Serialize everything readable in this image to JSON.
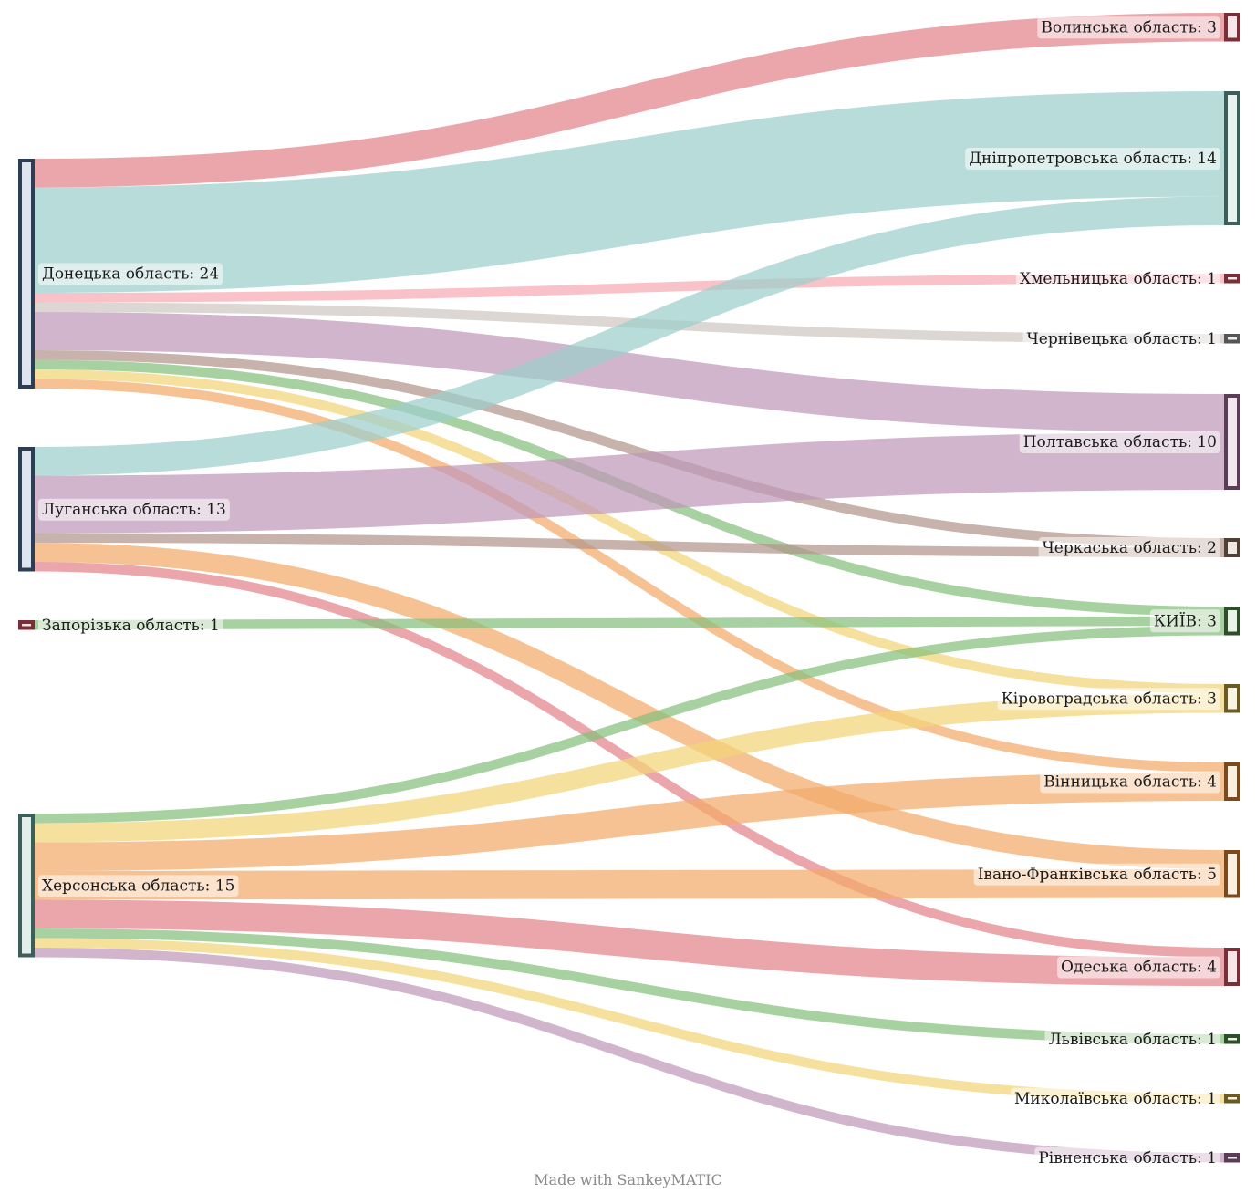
{
  "chart_data": {
    "type": "sankey",
    "unit_scale": 10.5,
    "sources": [
      {
        "id": "donetsk",
        "label": "Донецька область: 24",
        "value": 24,
        "color": "#2c3e56",
        "fill": "#dfe5ee"
      },
      {
        "id": "luhansk",
        "label": "Луганська область: 13",
        "value": 13,
        "color": "#2c3e56",
        "fill": "#dfe5ee"
      },
      {
        "id": "zaporizhzhia",
        "label": "Запорізька область: 1",
        "value": 1,
        "color": "#7a2e38",
        "fill": "#f3e1e3"
      },
      {
        "id": "kherson",
        "label": "Херсонська область: 15",
        "value": 15,
        "color": "#3d5f5a",
        "fill": "#e2eeec"
      }
    ],
    "targets": [
      {
        "id": "volyn",
        "label": "Волинська область: 3",
        "value": 3,
        "color": "#7a2e38",
        "fill": "#f6e6e8"
      },
      {
        "id": "dnipro",
        "label": "Дніпропетровська область: 14",
        "value": 14,
        "color": "#3d5f5a",
        "fill": "#e8f2f1"
      },
      {
        "id": "khmelnytskyi",
        "label": "Хмельницька область: 1",
        "value": 1,
        "color": "#7a2e38",
        "fill": "#f6e6e8"
      },
      {
        "id": "chernivtsi",
        "label": "Чернівецька область: 1",
        "value": 1,
        "color": "#555555",
        "fill": "#eeeeee"
      },
      {
        "id": "poltava",
        "label": "Полтавська область: 10",
        "value": 10,
        "color": "#5c3d57",
        "fill": "#f1e7ef"
      },
      {
        "id": "cherkasy",
        "label": "Черкаська область: 2",
        "value": 2,
        "color": "#4f3f35",
        "fill": "#efe8e3"
      },
      {
        "id": "kyiv",
        "label": "КИЇВ: 3",
        "value": 3,
        "color": "#2e4d2a",
        "fill": "#e8f2e6"
      },
      {
        "id": "kirovohrad",
        "label": "Кіровоградська область: 3",
        "value": 3,
        "color": "#6b5a24",
        "fill": "#faf5e2"
      },
      {
        "id": "vinnytsia",
        "label": "Вінницька область: 4",
        "value": 4,
        "color": "#7a4a1c",
        "fill": "#fbefe2"
      },
      {
        "id": "ivano",
        "label": "Івано-Франківська область: 5",
        "value": 5,
        "color": "#7a4a1c",
        "fill": "#fbefe2"
      },
      {
        "id": "odesa",
        "label": "Одеська область: 4",
        "value": 4,
        "color": "#7a2e38",
        "fill": "#f6e6e8"
      },
      {
        "id": "lviv",
        "label": "Львівська область: 1",
        "value": 1,
        "color": "#2e4d2a",
        "fill": "#e8f2e6"
      },
      {
        "id": "mykolaiv",
        "label": "Миколаївська область: 1",
        "value": 1,
        "color": "#6b5a24",
        "fill": "#faf5e2"
      },
      {
        "id": "rivne",
        "label": "Рівненська область: 1",
        "value": 1,
        "color": "#5c3d57",
        "fill": "#f1e7ef"
      }
    ],
    "links": [
      {
        "source": "donetsk",
        "target": "volyn",
        "value": 3,
        "color": "#e3838a"
      },
      {
        "source": "donetsk",
        "target": "dnipro",
        "value": 11,
        "color": "#9ccfcc"
      },
      {
        "source": "donetsk",
        "target": "khmelnytskyi",
        "value": 1,
        "color": "#f6aab4"
      },
      {
        "source": "donetsk",
        "target": "chernivtsi",
        "value": 1,
        "color": "#cfc8c2"
      },
      {
        "source": "donetsk",
        "target": "poltava",
        "value": 4,
        "color": "#bf98b9"
      },
      {
        "source": "donetsk",
        "target": "cherkasy",
        "value": 1,
        "color": "#b2958a"
      },
      {
        "source": "donetsk",
        "target": "kyiv",
        "value": 1,
        "color": "#86bf7d"
      },
      {
        "source": "donetsk",
        "target": "kirovohrad",
        "value": 1,
        "color": "#f2d479"
      },
      {
        "source": "donetsk",
        "target": "vinnytsia",
        "value": 1,
        "color": "#f3aa69"
      },
      {
        "source": "luhansk",
        "target": "dnipro",
        "value": 3,
        "color": "#9ccfcc"
      },
      {
        "source": "luhansk",
        "target": "poltava",
        "value": 6,
        "color": "#bf98b9"
      },
      {
        "source": "luhansk",
        "target": "cherkasy",
        "value": 1,
        "color": "#b2958a"
      },
      {
        "source": "luhansk",
        "target": "ivano",
        "value": 2,
        "color": "#f3aa69"
      },
      {
        "source": "luhansk",
        "target": "odesa",
        "value": 1,
        "color": "#e3838a"
      },
      {
        "source": "zaporizhzhia",
        "target": "kyiv",
        "value": 1,
        "color": "#86bf7d"
      },
      {
        "source": "kherson",
        "target": "kyiv",
        "value": 1,
        "color": "#86bf7d"
      },
      {
        "source": "kherson",
        "target": "kirovohrad",
        "value": 2,
        "color": "#f2d479"
      },
      {
        "source": "kherson",
        "target": "vinnytsia",
        "value": 3,
        "color": "#f3aa69"
      },
      {
        "source": "kherson",
        "target": "ivano",
        "value": 3,
        "color": "#f3aa69"
      },
      {
        "source": "kherson",
        "target": "odesa",
        "value": 3,
        "color": "#e3838a"
      },
      {
        "source": "kherson",
        "target": "lviv",
        "value": 1,
        "color": "#86bf7d"
      },
      {
        "source": "kherson",
        "target": "mykolaiv",
        "value": 1,
        "color": "#f2d479"
      },
      {
        "source": "kherson",
        "target": "rivne",
        "value": 1,
        "color": "#bf98b9"
      }
    ]
  },
  "footer": {
    "text": "Made with SankeyMATIC"
  }
}
